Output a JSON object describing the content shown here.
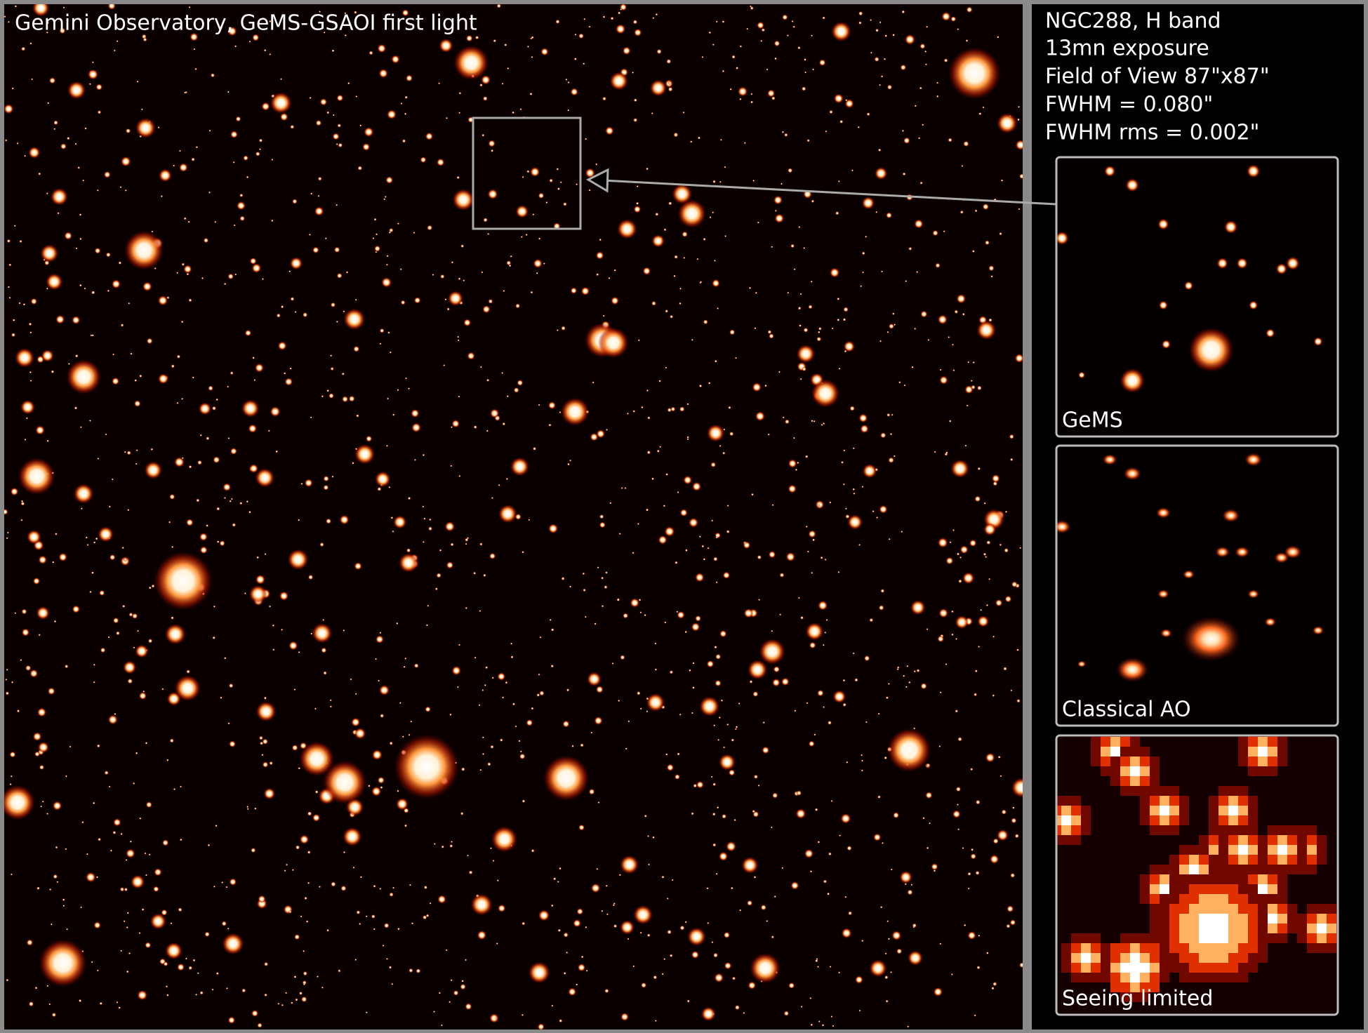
{
  "header": {
    "title": "Gemini Observatory, GeMS-GSAOI first light"
  },
  "info": {
    "lines": [
      "NGC288, H band",
      "13mn exposure",
      "Field of View 87\"x87\"",
      "FWHM = 0.080\"",
      "FWHM rms = 0.002\""
    ]
  },
  "panels": [
    {
      "label": "GeMS"
    },
    {
      "label": "Classical AO"
    },
    {
      "label": "Seeing limited"
    }
  ]
}
